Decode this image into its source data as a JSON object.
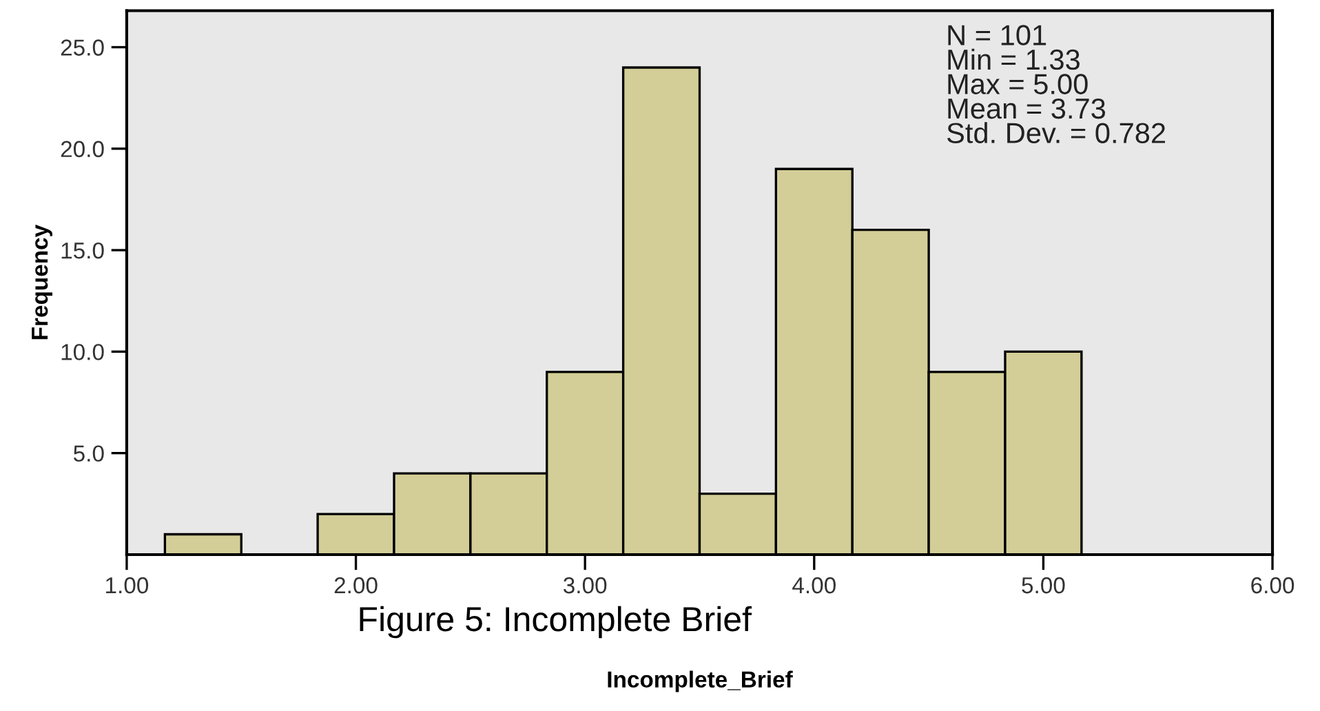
{
  "chart_data": {
    "type": "histogram",
    "bins": [
      1.1667,
      1.5,
      1.8333,
      2.1667,
      2.5,
      2.8333,
      3.1667,
      3.5,
      3.8333,
      4.1667,
      4.5,
      4.8333,
      5.1667
    ],
    "values": [
      1,
      0,
      2,
      4,
      4,
      9,
      24,
      3,
      19,
      16,
      9,
      10
    ],
    "color": "#d3ce97",
    "xlim": [
      1.0,
      6.0
    ],
    "xticks": [
      {
        "value": 1,
        "label": "1.00"
      },
      {
        "value": 2,
        "label": "2.00"
      },
      {
        "value": 3,
        "label": "3.00"
      },
      {
        "value": 4,
        "label": "4.00"
      },
      {
        "value": 5,
        "label": "5.00"
      },
      {
        "value": 6,
        "label": "6.00"
      }
    ],
    "ylim": [
      0,
      26.8
    ],
    "yticks": [
      {
        "value": 5,
        "label": "5.0"
      },
      {
        "value": 10,
        "label": "10.0"
      },
      {
        "value": 15,
        "label": "15.0"
      },
      {
        "value": 20,
        "label": "20.0"
      },
      {
        "value": 25,
        "label": "25.0"
      }
    ],
    "xlabel": "Incomplete_Brief",
    "ylabel": "Frequency",
    "annotations": [
      "N = 101",
      "Min = 1.33",
      "Max = 5.00",
      "Mean = 3.73",
      "Std. Dev. = 0.782",
      "Figure 5: Incomplete Brief"
    ],
    "grid": false,
    "legend": false
  }
}
